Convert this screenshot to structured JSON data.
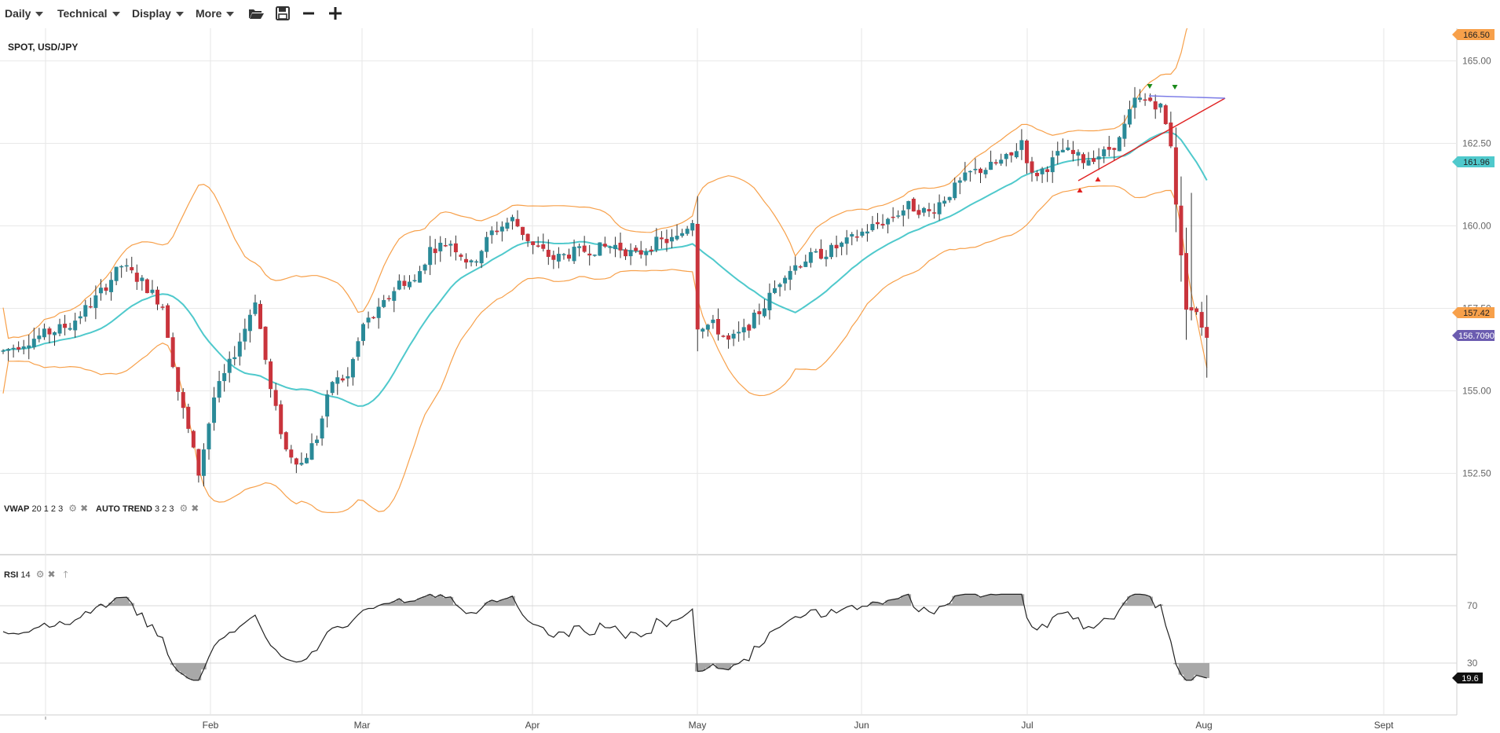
{
  "toolbar": {
    "menus": [
      {
        "label": "Daily"
      },
      {
        "label": "Technical"
      },
      {
        "label": "Display"
      },
      {
        "label": "More"
      }
    ],
    "icons": [
      "folder-open-icon",
      "save-icon",
      "zoom-out-icon",
      "zoom-in-icon"
    ]
  },
  "main_pane": {
    "title": "SPOT, USD/JPY",
    "indicators": [
      {
        "name": "VWAP",
        "params": "20 1 2 3"
      },
      {
        "name": "AUTO TREND",
        "params": "3 2 3"
      }
    ]
  },
  "rsi_pane": {
    "name": "RSI",
    "param": "14",
    "levels": [
      "70",
      "30"
    ],
    "current": "19.6"
  },
  "price_axis": {
    "ticks": [
      "165.00",
      "162.50",
      "160.00",
      "157.50",
      "155.00",
      "152.50"
    ],
    "badges": {
      "upper_band": "166.50",
      "middle_band": "161.96",
      "lower_band": "157.42",
      "last_price": "156.7090"
    }
  },
  "time_axis": {
    "labels": [
      "Feb",
      "Mar",
      "Apr",
      "May",
      "Jun",
      "Jul",
      "Aug",
      "Sept"
    ]
  },
  "colors": {
    "up_candle": "#2a8a98",
    "down_candle": "#c9343c",
    "band": "#f7a04a",
    "middle_band": "#4fc9cc",
    "trend_red": "#e02020",
    "trend_blue": "#7a7ae6",
    "badge_last": "#6b5cb0",
    "rsi_fill": "#a8a8a8"
  },
  "chart_data": {
    "type": "candlestick",
    "title": "SPOT, USD/JPY",
    "y_range": [
      150.5,
      167.0
    ],
    "y_ticks": [
      152.5,
      155.0,
      157.5,
      160.0,
      162.5,
      165.0
    ],
    "months": [
      "Feb",
      "Mar",
      "Apr",
      "May",
      "Jun",
      "Jul",
      "Aug",
      "Sept"
    ],
    "last_price": 156.709,
    "bollinger": {
      "upper": 166.5,
      "middle": 161.96,
      "lower": 157.42
    },
    "rsi": {
      "period": 14,
      "last": 19.6,
      "levels": [
        70,
        30
      ]
    }
  }
}
